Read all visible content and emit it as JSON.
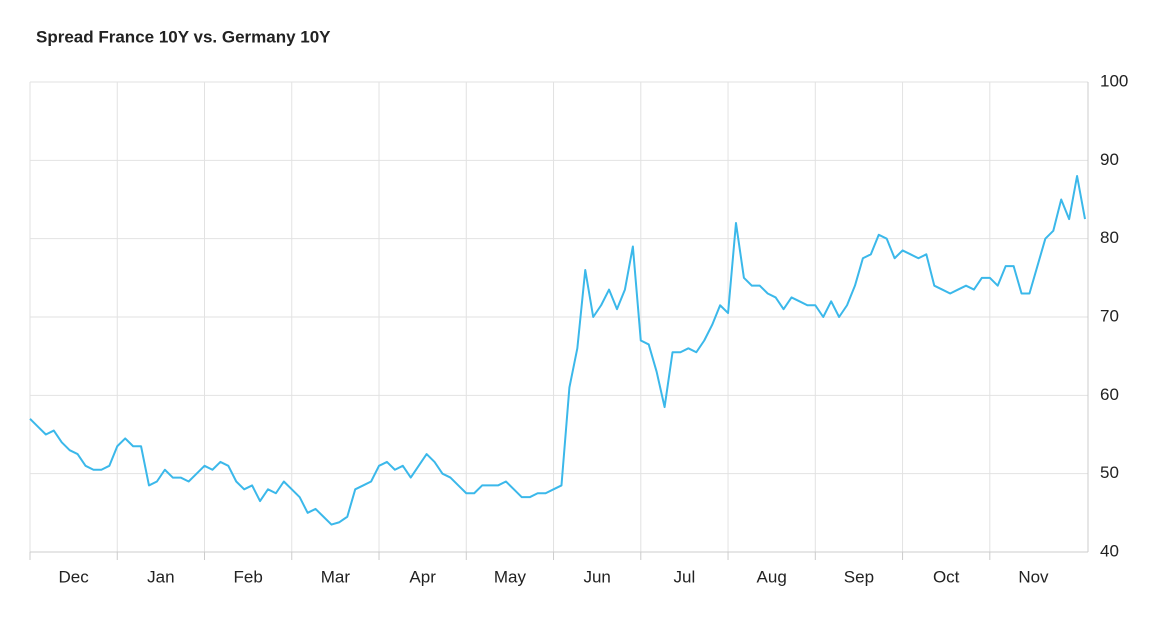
{
  "chart_data": {
    "type": "line",
    "title": "Spread France 10Y vs. Germany 10Y",
    "categories": [
      "Dec",
      null,
      null,
      null,
      null,
      null,
      null,
      null,
      null,
      null,
      null,
      "Jan",
      null,
      null,
      null,
      null,
      null,
      null,
      null,
      null,
      null,
      null,
      "Feb",
      null,
      null,
      null,
      null,
      null,
      null,
      null,
      null,
      null,
      null,
      "Mar",
      null,
      null,
      null,
      null,
      null,
      null,
      null,
      null,
      null,
      null,
      "Apr",
      null,
      null,
      null,
      null,
      null,
      null,
      null,
      null,
      null,
      null,
      "May",
      null,
      null,
      null,
      null,
      null,
      null,
      null,
      null,
      null,
      null,
      "Jun",
      null,
      null,
      null,
      null,
      null,
      null,
      null,
      null,
      null,
      null,
      "Jul",
      null,
      null,
      null,
      null,
      null,
      null,
      null,
      null,
      null,
      null,
      "Aug",
      null,
      null,
      null,
      null,
      null,
      null,
      null,
      null,
      null,
      null,
      "Sep",
      null,
      null,
      null,
      null,
      null,
      null,
      null,
      null,
      null,
      null,
      "Oct",
      null,
      null,
      null,
      null,
      null,
      null,
      null,
      null,
      null,
      null,
      "Nov",
      null,
      null,
      null,
      null,
      null,
      null,
      null,
      null,
      null,
      null,
      null,
      null
    ],
    "values": [
      57,
      56,
      55,
      55.5,
      54,
      53,
      52.5,
      51,
      50.5,
      50.5,
      51,
      53.5,
      54.5,
      53.5,
      53.5,
      48.5,
      49,
      50.5,
      49.5,
      49.5,
      49,
      50,
      51,
      50.5,
      51.5,
      51,
      49,
      48,
      48.5,
      46.5,
      48,
      47.5,
      49,
      48,
      47,
      45,
      45.5,
      44.5,
      43.5,
      43.8,
      44.5,
      48,
      48.5,
      49,
      51,
      51.5,
      50.5,
      51,
      49.5,
      51,
      52.5,
      51.5,
      50,
      49.5,
      48.5,
      47.5,
      47.5,
      48.5,
      48.5,
      48.5,
      49,
      48,
      47,
      47,
      47.5,
      47.5,
      48,
      48.5,
      61,
      66,
      76,
      70,
      71.5,
      73.5,
      71,
      73.5,
      79,
      67,
      66.5,
      63,
      58.5,
      65.5,
      65.5,
      66,
      65.5,
      67,
      69,
      71.5,
      70.5,
      82,
      75,
      74,
      74,
      73,
      72.5,
      71,
      72.5,
      72,
      71.5,
      71.5,
      70,
      72,
      70,
      71.5,
      74,
      77.5,
      78,
      80.5,
      80,
      77.5,
      78.5,
      78,
      77.5,
      78,
      74,
      73.5,
      73,
      73.5,
      74,
      73.5,
      75,
      75,
      74,
      76.5,
      76.5,
      73,
      73,
      76.5,
      80,
      81,
      85,
      82.5,
      88,
      82.5
    ],
    "color": "#3bb8ea",
    "ylim": [
      40,
      100
    ],
    "yticks": [
      40,
      50,
      60,
      70,
      80,
      90,
      100
    ],
    "grid": true
  }
}
